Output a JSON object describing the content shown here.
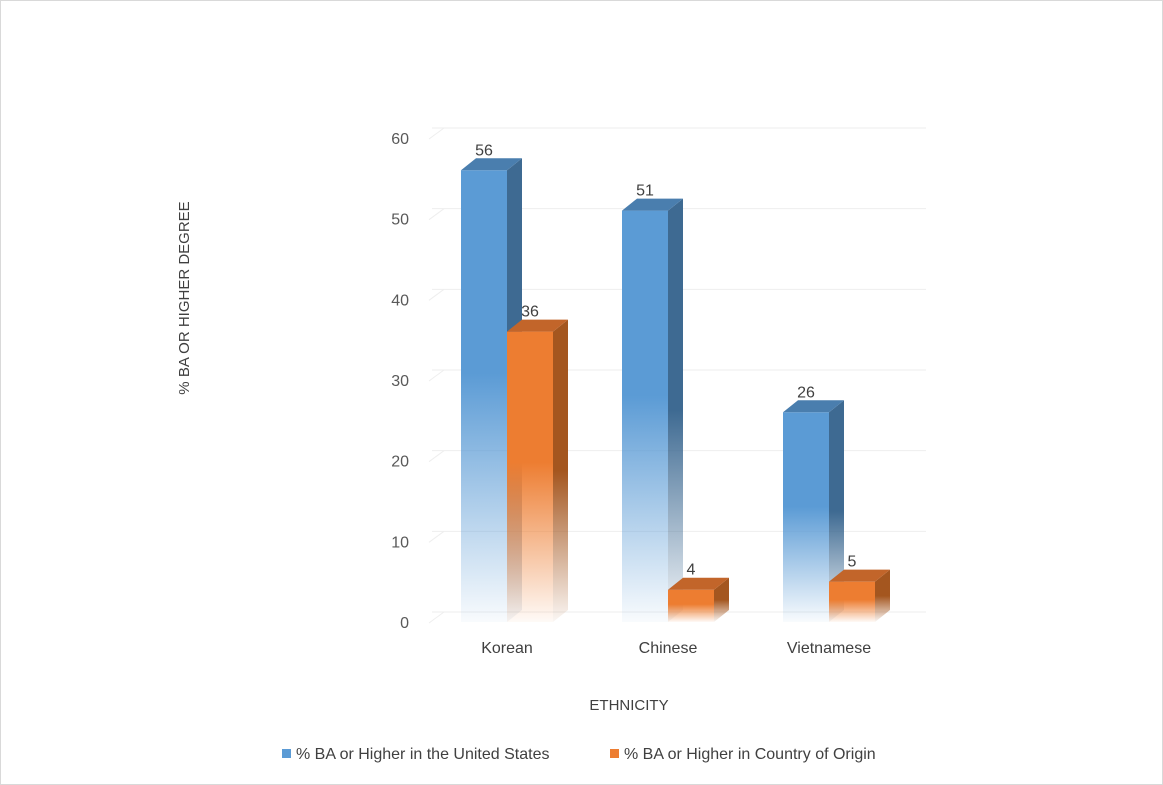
{
  "chart_data": {
    "type": "bar",
    "style": "3d-clustered-column",
    "title": "",
    "categories": [
      "Korean",
      "Chinese",
      "Vietnamese"
    ],
    "series": [
      {
        "name": "% BA or Higher in the United States",
        "values": [
          56,
          51,
          26
        ],
        "color": "#5B9BD5"
      },
      {
        "name": "% BA or Higher in Country of Origin",
        "values": [
          36,
          4,
          5
        ],
        "color": "#ED7D31"
      }
    ],
    "xlabel": "ETHNICITY",
    "ylabel": "% BA OR HIGHER DEGREE",
    "ylim": [
      0,
      60
    ],
    "yticks": [
      0,
      10,
      20,
      30,
      40,
      50,
      60
    ],
    "grid": true,
    "legend_position": "bottom",
    "data_labels": true
  }
}
